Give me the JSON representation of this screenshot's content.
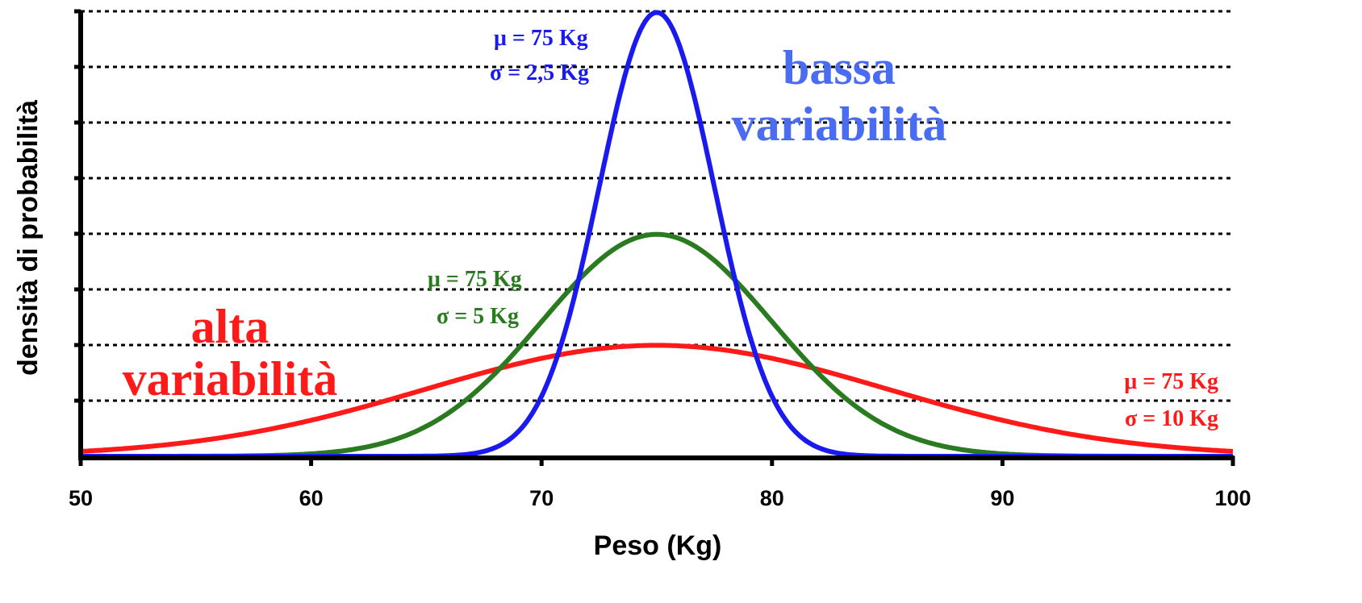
{
  "chart_data": {
    "type": "line",
    "xlabel": "Peso (Kg)",
    "ylabel": "densità di probabilità",
    "xlim": [
      50,
      100
    ],
    "ylim": [
      0,
      0.16
    ],
    "x_ticks": [
      "50",
      "60",
      "70",
      "80",
      "90",
      "100"
    ],
    "y_tick_count": 8,
    "grid": "horizontal dotted",
    "series": [
      {
        "mu": 75,
        "sigma": 2.5,
        "color": "#1a1aee",
        "label_mu": "μ = 75 Kg",
        "label_sigma": "σ = 2,5 Kg"
      },
      {
        "mu": 75,
        "sigma": 5,
        "color": "#2a7a1f",
        "label_mu": "μ = 75 Kg",
        "label_sigma": "σ = 5 Kg"
      },
      {
        "mu": 75,
        "sigma": 10,
        "color": "#ff1a1a",
        "label_mu": "μ = 75 Kg",
        "label_sigma": "σ = 10 Kg"
      }
    ],
    "annotations": {
      "high": {
        "line1": "alta",
        "line2": "variabilità",
        "color": "#ff1a1a"
      },
      "low": {
        "line1": "bassa",
        "line2": "variabilità",
        "color": "#4a6cf0"
      }
    }
  }
}
